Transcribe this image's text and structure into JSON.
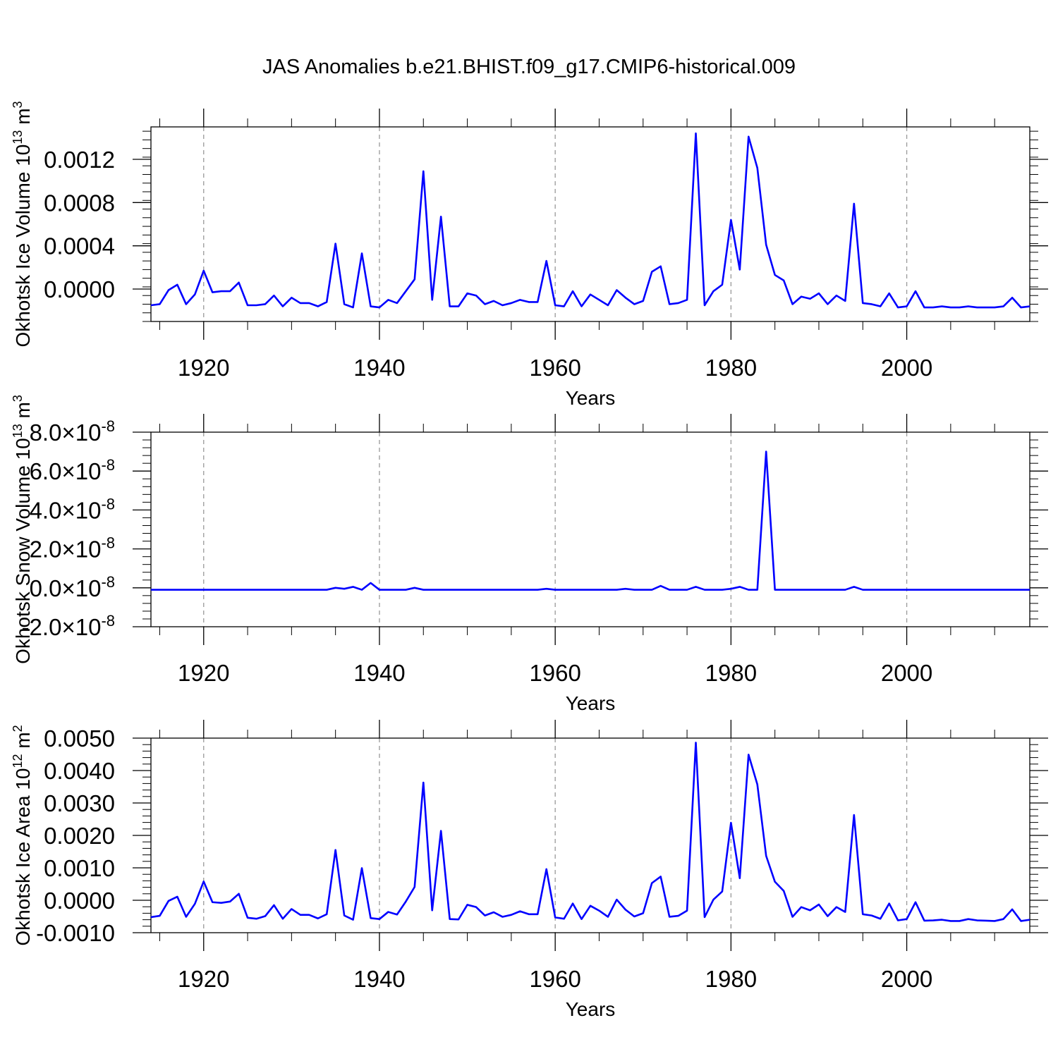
{
  "figure": {
    "title": "JAS Anomalies b.e21.BHIST.f09_g17.CMIP6-historical.009",
    "line_color": "#0000ff",
    "grid_color": "#999999"
  },
  "chart_data": [
    {
      "type": "line",
      "name": "ice-volume",
      "title": "",
      "xlabel": "Years",
      "ylabel": "Okhotsk Ice Volume 10",
      "ylabel_exp": "13",
      "ylabel_unit": " m",
      "ylabel_unit_exp": "3",
      "xlim": [
        1914,
        2014
      ],
      "ylim": [
        -0.0003,
        0.0015
      ],
      "x_ticks": [
        1920,
        1940,
        1960,
        1980,
        2000
      ],
      "x_tick_labels": [
        "1920",
        "1940",
        "1960",
        "1980",
        "2000"
      ],
      "y_ticks": [
        0.0,
        0.0004,
        0.0008,
        0.0012
      ],
      "y_tick_labels": [
        "0.0000",
        "0.0004",
        "0.0008",
        "0.0012"
      ],
      "x_start": 1914,
      "values": [
        -0.00015,
        -0.00014,
        -1e-05,
        4e-05,
        -0.00014,
        -5e-05,
        0.00017,
        -3e-05,
        -2e-05,
        -2e-05,
        6e-05,
        -0.00015,
        -0.00015,
        -0.00014,
        -6e-05,
        -0.00016,
        -8e-05,
        -0.00013,
        -0.00013,
        -0.00016,
        -0.00012,
        0.00042,
        -0.00014,
        -0.00017,
        0.00033,
        -0.00016,
        -0.00017,
        -0.0001,
        -0.00013,
        -2e-05,
        9e-05,
        0.00109,
        -0.0001,
        0.00067,
        -0.00016,
        -0.00016,
        -4e-05,
        -6e-05,
        -0.00014,
        -0.00011,
        -0.00015,
        -0.00013,
        -0.0001,
        -0.00012,
        -0.00012,
        0.00026,
        -0.00015,
        -0.00016,
        -2e-05,
        -0.00016,
        -5e-05,
        -0.0001,
        -0.00015,
        -1e-05,
        -8e-05,
        -0.00014,
        -0.00011,
        0.00016,
        0.00021,
        -0.00014,
        -0.00013,
        -0.0001,
        0.00144,
        -0.00015,
        -2e-05,
        4e-05,
        0.00064,
        0.00018,
        0.00141,
        0.00112,
        0.00041,
        0.00013,
        8e-05,
        -0.00014,
        -7e-05,
        -9e-05,
        -4e-05,
        -0.00014,
        -6e-05,
        -0.00011,
        0.00079,
        -0.00013,
        -0.00014,
        -0.00016,
        -4e-05,
        -0.00017,
        -0.00016,
        -2e-05,
        -0.00017,
        -0.00017,
        -0.00016,
        -0.00017,
        -0.00017,
        -0.00016,
        -0.00017,
        -0.00017,
        -0.00017,
        -0.00016,
        -8e-05,
        -0.00017,
        -0.00016
      ]
    },
    {
      "type": "line",
      "name": "snow-volume",
      "title": "",
      "xlabel": "Years",
      "ylabel": "Okhotsk Snow Volume 10",
      "ylabel_exp": "13",
      "ylabel_unit": " m",
      "ylabel_unit_exp": "3",
      "xlim": [
        1914,
        2014
      ],
      "ylim": [
        -2e-08,
        8e-08
      ],
      "x_ticks": [
        1920,
        1940,
        1960,
        1980,
        2000
      ],
      "x_tick_labels": [
        "1920",
        "1940",
        "1960",
        "1980",
        "2000"
      ],
      "y_ticks": [
        -2e-08,
        0.0,
        2e-08,
        4e-08,
        6e-08,
        8e-08
      ],
      "y_tick_mantissas": [
        "-2.0",
        "0.0",
        "2.0",
        "4.0",
        "6.0",
        "8.0"
      ],
      "y_tick_times": "×",
      "y_tick_base": "10",
      "y_tick_exp": "-8",
      "x_start": 1914,
      "values": [
        -1e-09,
        -1e-09,
        -1e-09,
        -1e-09,
        -1e-09,
        -1e-09,
        -1e-09,
        -1e-09,
        -1e-09,
        -1e-09,
        -1e-09,
        -1e-09,
        -1e-09,
        -1e-09,
        -1e-09,
        -1e-09,
        -1e-09,
        -1e-09,
        -1e-09,
        -1e-09,
        -1e-09,
        0.0,
        -5e-10,
        5e-10,
        -1e-09,
        2.5e-09,
        -1e-09,
        -1e-09,
        -1e-09,
        -1e-09,
        0.0,
        -1e-09,
        -1e-09,
        -1e-09,
        -1e-09,
        -1e-09,
        -1e-09,
        -1e-09,
        -1e-09,
        -1e-09,
        -1e-09,
        -1e-09,
        -1e-09,
        -1e-09,
        -1e-09,
        -5e-10,
        -1e-09,
        -1e-09,
        -1e-09,
        -1e-09,
        -1e-09,
        -1e-09,
        -1e-09,
        -1e-09,
        -5e-10,
        -1e-09,
        -1e-09,
        -1e-09,
        1e-09,
        -1e-09,
        -1e-09,
        -1e-09,
        5e-10,
        -1e-09,
        -1e-09,
        -1e-09,
        -5e-10,
        5e-10,
        -1e-09,
        -1e-09,
        7e-08,
        -1e-09,
        -1e-09,
        -1e-09,
        -1e-09,
        -1e-09,
        -1e-09,
        -1e-09,
        -1e-09,
        -1e-09,
        5e-10,
        -1e-09,
        -1e-09,
        -1e-09,
        -1e-09,
        -1e-09,
        -1e-09,
        -1e-09,
        -1e-09,
        -1e-09,
        -1e-09,
        -1e-09,
        -1e-09,
        -1e-09,
        -1e-09,
        -1e-09,
        -1e-09,
        -1e-09,
        -1e-09,
        -1e-09,
        -1e-09
      ]
    },
    {
      "type": "line",
      "name": "ice-area",
      "title": "",
      "xlabel": "Years",
      "ylabel": "Okhotsk Ice Area 10",
      "ylabel_exp": "12",
      "ylabel_unit": " m",
      "ylabel_unit_exp": "2",
      "xlim": [
        1914,
        2014
      ],
      "ylim": [
        -0.001,
        0.005
      ],
      "x_ticks": [
        1920,
        1940,
        1960,
        1980,
        2000
      ],
      "x_tick_labels": [
        "1920",
        "1940",
        "1960",
        "1980",
        "2000"
      ],
      "y_ticks": [
        -0.001,
        0.0,
        0.001,
        0.002,
        0.003,
        0.004,
        0.005
      ],
      "y_tick_labels": [
        "-0.0010",
        "0.0000",
        "0.0010",
        "0.0020",
        "0.0030",
        "0.0040",
        "0.0050"
      ],
      "x_start": 1914,
      "values": [
        -0.00052,
        -0.00048,
        -2e-05,
        0.00011,
        -0.00051,
        -0.00011,
        0.00058,
        -6e-05,
        -8e-05,
        -4e-05,
        0.0002,
        -0.00054,
        -0.00057,
        -0.00049,
        -0.00015,
        -0.00057,
        -0.00027,
        -0.00045,
        -0.00045,
        -0.00056,
        -0.00043,
        0.00155,
        -0.00047,
        -0.0006,
        0.00099,
        -0.00055,
        -0.00058,
        -0.00036,
        -0.00044,
        -4e-05,
        0.00041,
        0.00363,
        -0.00031,
        0.00214,
        -0.00058,
        -0.00059,
        -0.00014,
        -0.00021,
        -0.00047,
        -0.00037,
        -0.00051,
        -0.00045,
        -0.00034,
        -0.00043,
        -0.00043,
        0.00096,
        -0.00053,
        -0.00057,
        -0.0001,
        -0.00058,
        -0.00017,
        -0.00032,
        -0.00051,
        2e-05,
        -0.00029,
        -0.0005,
        -0.0004,
        0.00053,
        0.00073,
        -0.00051,
        -0.00048,
        -0.00032,
        0.00486,
        -0.00052,
        2e-05,
        0.00027,
        0.00239,
        0.00068,
        0.00449,
        0.00357,
        0.00137,
        0.00057,
        0.00029,
        -0.00051,
        -0.00021,
        -0.00031,
        -0.00013,
        -0.00049,
        -0.00021,
        -0.00036,
        0.00263,
        -0.00043,
        -0.00047,
        -0.00057,
        -0.0001,
        -0.00062,
        -0.00058,
        -6e-05,
        -0.00063,
        -0.00062,
        -0.0006,
        -0.00064,
        -0.00064,
        -0.00058,
        -0.00062,
        -0.00063,
        -0.00064,
        -0.00058,
        -0.00028,
        -0.00064,
        -0.0006
      ]
    }
  ]
}
